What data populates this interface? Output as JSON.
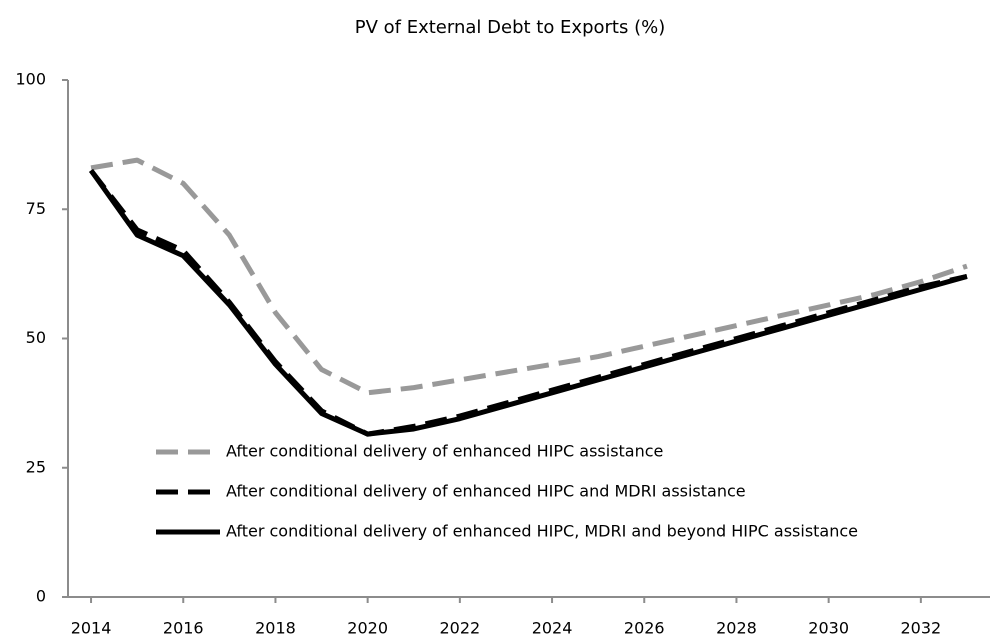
{
  "chart_data": {
    "type": "line",
    "title": "PV of External Debt to Exports (%)",
    "x": [
      2014,
      2015,
      2016,
      2017,
      2018,
      2019,
      2020,
      2021,
      2022,
      2023,
      2024,
      2025,
      2026,
      2027,
      2028,
      2029,
      2030,
      2031,
      2032,
      2033
    ],
    "xlim": [
      2013.5,
      2033.5
    ],
    "xticks": [
      2014,
      2016,
      2018,
      2020,
      2022,
      2024,
      2026,
      2028,
      2030,
      2032
    ],
    "ylim": [
      0,
      100
    ],
    "yticks": [
      0,
      25,
      50,
      75,
      100
    ],
    "grid": false,
    "series": [
      {
        "name": "After conditional delivery of enhanced HIPC assistance",
        "color": "#999999",
        "dash": "dashed",
        "values": [
          83,
          84.5,
          80,
          70,
          55,
          44,
          39.5,
          40.5,
          42,
          43.5,
          45,
          46.5,
          48.5,
          50.5,
          52.5,
          54.5,
          56.5,
          58.5,
          61,
          64
        ]
      },
      {
        "name": "After conditional delivery of enhanced HIPC and MDRI assistance",
        "color": "#000000",
        "dash": "dashed",
        "values": [
          82.5,
          71,
          67,
          57,
          45.5,
          36,
          31.5,
          33,
          35,
          37.5,
          40,
          42.5,
          45,
          47.5,
          50,
          52.5,
          55,
          57.5,
          60,
          62
        ]
      },
      {
        "name": "After conditional delivery of enhanced HIPC, MDRI and beyond HIPC assistance",
        "color": "#000000",
        "dash": "solid",
        "values": [
          82.5,
          70,
          66,
          56.5,
          45,
          35.5,
          31.5,
          32.5,
          34.5,
          37,
          39.5,
          42,
          44.5,
          47,
          49.5,
          52,
          54.5,
          57,
          59.5,
          62
        ]
      }
    ]
  }
}
